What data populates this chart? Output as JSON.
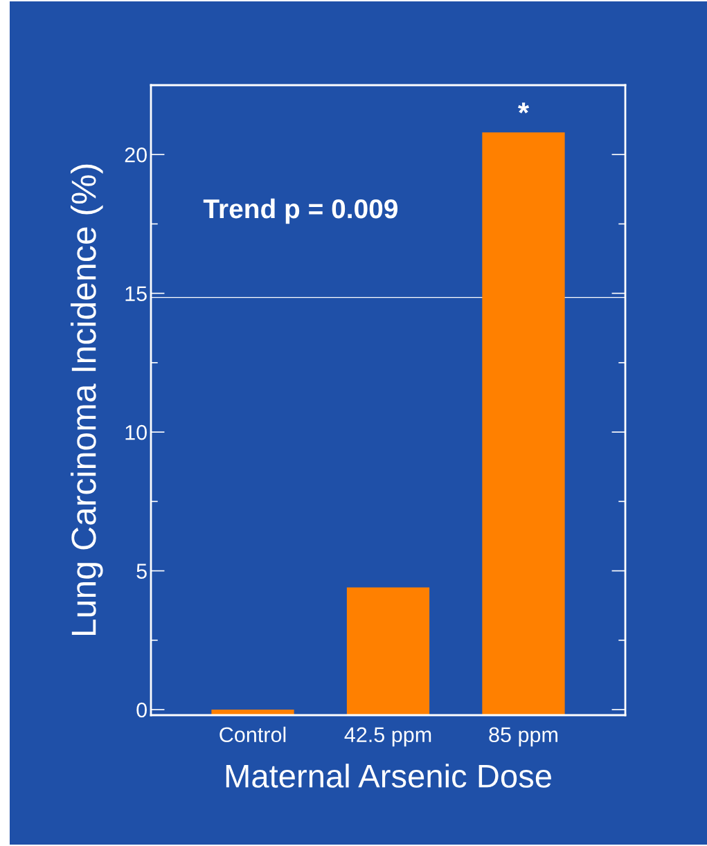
{
  "chart_data": {
    "type": "bar",
    "xlabel": "Maternal Arsenic Dose",
    "ylabel": "Lung Carcinoma Incidence (%)",
    "categories": [
      "Control",
      "42.5 ppm",
      "85 ppm"
    ],
    "values": [
      0.2,
      4.6,
      21.0
    ],
    "base": [
      -0.2,
      -0.2,
      -0.2
    ],
    "color": "#ff8000",
    "ylim": [
      -0.2,
      22.5
    ],
    "yticks": [
      0,
      5,
      10,
      15,
      20
    ],
    "grid": false,
    "ref_lines": [
      {
        "axis": "y",
        "value": 14.85,
        "color": "#ffffff"
      }
    ],
    "annotations": [
      "Trend p = 0.009",
      {
        "text": "*",
        "x": "85 ppm",
        "y": 20.8
      }
    ]
  }
}
